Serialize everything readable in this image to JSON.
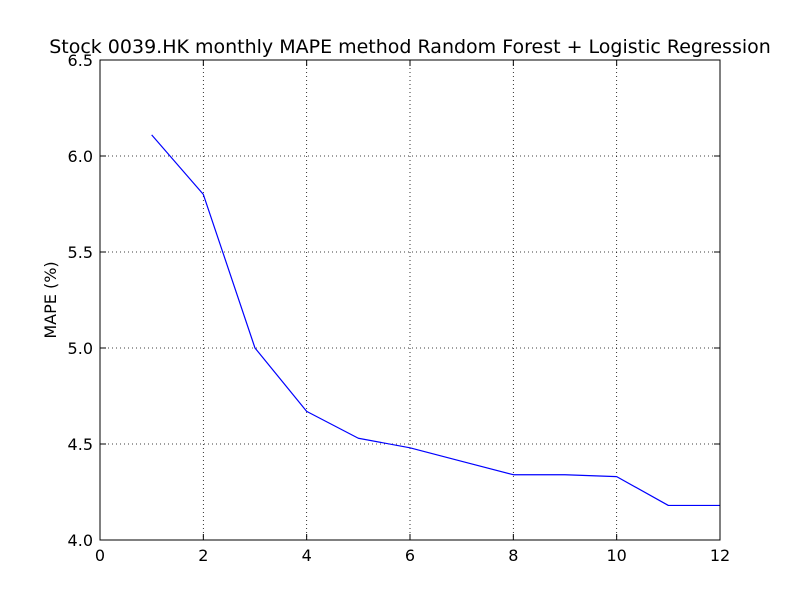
{
  "chart_data": {
    "type": "line",
    "title": "Stock 0039.HK monthly MAPE method Random Forest + Logistic Regression",
    "xlabel": "",
    "ylabel": "MAPE (%)",
    "xlim": [
      0,
      12
    ],
    "ylim": [
      4.0,
      6.5
    ],
    "xticks": [
      "0",
      "2",
      "4",
      "6",
      "8",
      "10",
      "12"
    ],
    "yticks": [
      "4.0",
      "4.5",
      "5.0",
      "5.5",
      "6.0",
      "6.5"
    ],
    "grid": true,
    "series": [
      {
        "color": "#0000ff",
        "x": [
          1,
          2,
          3,
          4,
          5,
          6,
          7,
          8,
          9,
          10,
          11,
          12
        ],
        "y": [
          6.11,
          5.8,
          5.0,
          4.67,
          4.53,
          4.48,
          4.41,
          4.34,
          4.34,
          4.33,
          4.18,
          4.18
        ]
      }
    ]
  }
}
